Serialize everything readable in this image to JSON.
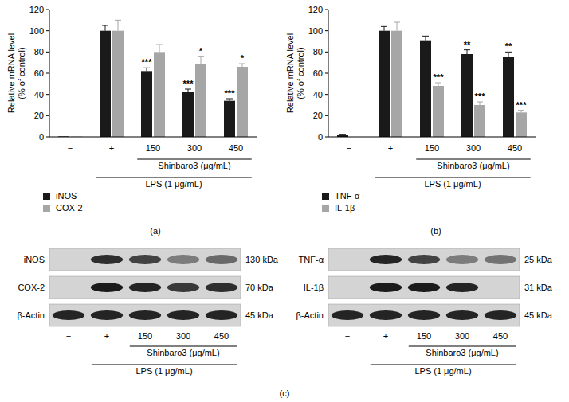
{
  "chart_data": [
    {
      "type": "bar",
      "y_label": [
        "Relative mRNA level",
        "(% of control)"
      ],
      "categories": [
        "−",
        "+",
        "150",
        "300",
        "450"
      ],
      "series": [
        {
          "name": "iNOS",
          "color": "#1a1a1a",
          "values": [
            0.5,
            100,
            62,
            42,
            34
          ],
          "errors": [
            0,
            5,
            3,
            3,
            2
          ],
          "significance": [
            null,
            null,
            "***",
            "***",
            "***"
          ]
        },
        {
          "name": "COX-2",
          "color": "#a6a6a6",
          "values": [
            0.3,
            100,
            80,
            69,
            66
          ],
          "errors": [
            0,
            10,
            7,
            7,
            3
          ],
          "significance": [
            null,
            null,
            null,
            "*",
            "*"
          ]
        }
      ],
      "groups": [
        {
          "label": "Shinbaro3 (μg/mL)",
          "from": 2,
          "to": 4
        },
        {
          "label": "LPS (1 μg/mL)",
          "from": 1,
          "to": 4
        }
      ],
      "ylim": [
        0,
        120
      ],
      "yticks": [
        0,
        20,
        40,
        60,
        80,
        100,
        120
      ],
      "grid": false,
      "legend": "bottom left"
    },
    {
      "type": "bar",
      "y_label": [
        "Relative mRNA level",
        "(% of control)"
      ],
      "categories": [
        "−",
        "+",
        "150",
        "300",
        "450"
      ],
      "series": [
        {
          "name": "TNF-α",
          "color": "#1a1a1a",
          "values": [
            2,
            100,
            91,
            78,
            75
          ],
          "errors": [
            0.5,
            4,
            4,
            4,
            5
          ],
          "significance": [
            null,
            null,
            null,
            "**",
            "**"
          ]
        },
        {
          "name": "IL-1β",
          "color": "#a6a6a6",
          "values": [
            0,
            100,
            48,
            30,
            23
          ],
          "errors": [
            0,
            8,
            3,
            3,
            2
          ],
          "significance": [
            null,
            null,
            "***",
            "***",
            "***"
          ]
        }
      ],
      "groups": [
        {
          "label": "Shinbaro3 (μg/mL)",
          "from": 2,
          "to": 4
        },
        {
          "label": "LPS (1 μg/mL)",
          "from": 1,
          "to": 4
        }
      ],
      "ylim": [
        0,
        120
      ],
      "yticks": [
        0,
        20,
        40,
        60,
        80,
        100,
        120
      ],
      "grid": false,
      "legend": "bottom left"
    }
  ],
  "panel_labels": [
    "(a)",
    "(b)",
    "(c)"
  ],
  "blots": [
    {
      "lanes": [
        "−",
        "+",
        "150",
        "300",
        "450"
      ],
      "rows": [
        {
          "protein": "iNOS",
          "size": "130 kDa",
          "intensity": [
            0,
            0.85,
            0.75,
            0.45,
            0.55
          ]
        },
        {
          "protein": "COX-2",
          "size": "70 kDa",
          "intensity": [
            0,
            0.95,
            0.9,
            0.8,
            0.85
          ]
        },
        {
          "protein": "β-Actin",
          "size": "45 kDa",
          "intensity": [
            0.9,
            0.9,
            0.9,
            0.9,
            0.9
          ]
        }
      ],
      "groups": [
        {
          "label": "Shinbaro3 (μg/mL)",
          "from": 2,
          "to": 4
        },
        {
          "label": "LPS (1 μg/mL)",
          "from": 1,
          "to": 4
        }
      ]
    },
    {
      "lanes": [
        "−",
        "+",
        "150",
        "300",
        "450"
      ],
      "rows": [
        {
          "protein": "TNF-α",
          "size": "25 kDa",
          "intensity": [
            0,
            0.9,
            0.75,
            0.45,
            0.5
          ]
        },
        {
          "protein": "IL-1β",
          "size": "31 kDa",
          "intensity": [
            0,
            0.95,
            0.95,
            0.9,
            0
          ]
        },
        {
          "protein": "β-Actin",
          "size": "45 kDa",
          "intensity": [
            0.9,
            0.9,
            0.9,
            0.9,
            0.9
          ]
        }
      ],
      "groups": [
        {
          "label": "Shinbaro3 (μg/mL)",
          "from": 2,
          "to": 4
        },
        {
          "label": "LPS (1 μg/mL)",
          "from": 1,
          "to": 4
        }
      ]
    }
  ]
}
